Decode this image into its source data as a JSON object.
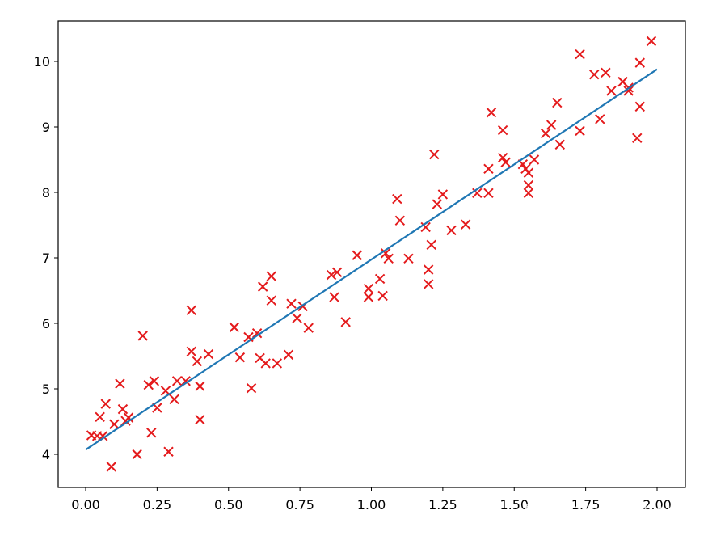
{
  "chart_data": {
    "type": "scatter",
    "title": "",
    "xlabel": "",
    "ylabel": "",
    "xlim": [
      -0.1,
      2.1
    ],
    "ylim": [
      3.5,
      10.65
    ],
    "x_ticks": [
      0.0,
      0.25,
      0.5,
      0.75,
      1.0,
      1.25,
      1.5,
      1.75,
      2.0
    ],
    "x_tick_labels": [
      "0.00",
      "0.25",
      "0.50",
      "0.75",
      "1.00",
      "1.25",
      "1.50",
      "1.75",
      "2.00"
    ],
    "y_ticks": [
      4,
      5,
      6,
      7,
      8,
      9,
      10
    ],
    "y_tick_labels": [
      "4",
      "5",
      "6",
      "7",
      "8",
      "9",
      "10"
    ],
    "grid": false,
    "series": [
      {
        "kind": "scatter",
        "marker": "x",
        "color": "#e41a1c",
        "points": [
          [
            0.02,
            4.29
          ],
          [
            0.04,
            4.28
          ],
          [
            0.05,
            4.57
          ],
          [
            0.06,
            4.28
          ],
          [
            0.07,
            4.77
          ],
          [
            0.09,
            3.81
          ],
          [
            0.1,
            4.46
          ],
          [
            0.12,
            5.08
          ],
          [
            0.13,
            4.69
          ],
          [
            0.14,
            4.51
          ],
          [
            0.15,
            4.56
          ],
          [
            0.18,
            4.0
          ],
          [
            0.2,
            5.81
          ],
          [
            0.22,
            5.06
          ],
          [
            0.24,
            5.12
          ],
          [
            0.23,
            4.33
          ],
          [
            0.25,
            4.71
          ],
          [
            0.28,
            4.97
          ],
          [
            0.29,
            4.04
          ],
          [
            0.31,
            4.84
          ],
          [
            0.32,
            5.12
          ],
          [
            0.35,
            5.12
          ],
          [
            0.37,
            6.2
          ],
          [
            0.37,
            5.57
          ],
          [
            0.39,
            5.42
          ],
          [
            0.4,
            5.04
          ],
          [
            0.4,
            4.53
          ],
          [
            0.43,
            5.53
          ],
          [
            0.52,
            5.94
          ],
          [
            0.54,
            5.48
          ],
          [
            0.57,
            5.79
          ],
          [
            0.58,
            5.01
          ],
          [
            0.6,
            5.85
          ],
          [
            0.61,
            5.47
          ],
          [
            0.62,
            6.56
          ],
          [
            0.63,
            5.39
          ],
          [
            0.65,
            6.72
          ],
          [
            0.65,
            6.35
          ],
          [
            0.67,
            5.39
          ],
          [
            0.71,
            5.52
          ],
          [
            0.72,
            6.3
          ],
          [
            0.74,
            6.08
          ],
          [
            0.76,
            6.26
          ],
          [
            0.78,
            5.93
          ],
          [
            0.86,
            6.74
          ],
          [
            0.87,
            6.4
          ],
          [
            0.88,
            6.78
          ],
          [
            0.91,
            6.02
          ],
          [
            0.95,
            7.04
          ],
          [
            0.99,
            6.53
          ],
          [
            0.99,
            6.4
          ],
          [
            1.03,
            6.68
          ],
          [
            1.04,
            6.42
          ],
          [
            1.05,
            7.07
          ],
          [
            1.06,
            6.99
          ],
          [
            1.09,
            7.9
          ],
          [
            1.1,
            7.57
          ],
          [
            1.13,
            6.99
          ],
          [
            1.19,
            7.47
          ],
          [
            1.2,
            6.82
          ],
          [
            1.2,
            6.6
          ],
          [
            1.21,
            7.2
          ],
          [
            1.22,
            8.58
          ],
          [
            1.23,
            7.82
          ],
          [
            1.25,
            7.97
          ],
          [
            1.28,
            7.42
          ],
          [
            1.33,
            7.51
          ],
          [
            1.37,
            7.99
          ],
          [
            1.41,
            7.99
          ],
          [
            1.41,
            8.36
          ],
          [
            1.42,
            9.22
          ],
          [
            1.46,
            8.95
          ],
          [
            1.46,
            8.53
          ],
          [
            1.47,
            8.46
          ],
          [
            1.53,
            8.43
          ],
          [
            1.54,
            8.36
          ],
          [
            1.55,
            8.3
          ],
          [
            1.55,
            8.11
          ],
          [
            1.55,
            7.99
          ],
          [
            1.57,
            8.5
          ],
          [
            1.61,
            8.9
          ],
          [
            1.63,
            9.03
          ],
          [
            1.65,
            9.37
          ],
          [
            1.66,
            8.73
          ],
          [
            1.73,
            10.11
          ],
          [
            1.73,
            8.94
          ],
          [
            1.78,
            9.8
          ],
          [
            1.8,
            9.12
          ],
          [
            1.82,
            9.83
          ],
          [
            1.84,
            9.55
          ],
          [
            1.88,
            9.69
          ],
          [
            1.9,
            9.6
          ],
          [
            1.9,
            9.55
          ],
          [
            1.93,
            8.83
          ],
          [
            1.94,
            9.31
          ],
          [
            1.94,
            9.98
          ],
          [
            1.98,
            10.31
          ]
        ]
      },
      {
        "kind": "line",
        "color": "#1f77b4",
        "points": [
          [
            0.0,
            4.07
          ],
          [
            2.0,
            9.88
          ]
        ]
      }
    ]
  },
  "watermark": {
    "text": "知乎 @小黑黑讲AI"
  },
  "colors": {
    "scatter": "#e41a1c",
    "line": "#1f77b4",
    "axes": "#000000"
  }
}
